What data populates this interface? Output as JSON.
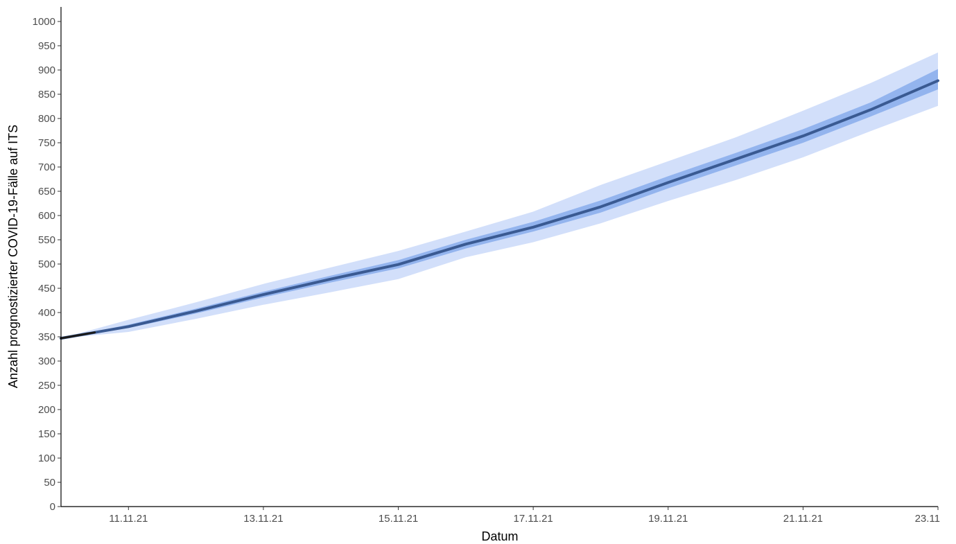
{
  "chart_data": {
    "type": "area",
    "title": "",
    "xlabel": "Datum",
    "ylabel": "Anzahl prognostizierter COVID-19-Fälle auf ITS",
    "x_ticks": [
      "11.11.21",
      "13.11.21",
      "15.11.21",
      "17.11.21",
      "19.11.21",
      "21.11.21",
      "23.11"
    ],
    "x_tick_dates": [
      "2021-11-11",
      "2021-11-13",
      "2021-11-15",
      "2021-11-17",
      "2021-11-19",
      "2021-11-21",
      "2021-11-23"
    ],
    "xlim": [
      "2021-11-10",
      "2021-11-23"
    ],
    "ylim": [
      0,
      1030
    ],
    "y_ticks": [
      0,
      50,
      100,
      150,
      200,
      250,
      300,
      350,
      400,
      450,
      500,
      550,
      600,
      650,
      700,
      750,
      800,
      850,
      900,
      950,
      1000
    ],
    "grid": false,
    "legend": "none",
    "x": [
      "2021-11-10",
      "2021-11-11",
      "2021-11-12",
      "2021-11-13",
      "2021-11-14",
      "2021-11-15",
      "2021-11-16",
      "2021-11-17",
      "2021-11-18",
      "2021-11-19",
      "2021-11-20",
      "2021-11-21",
      "2021-11-22",
      "2021-11-23"
    ],
    "series": [
      {
        "values": [
          347,
          371,
          403,
          437,
          469,
          499,
          541,
          576,
          618,
          668,
          716,
          764,
          818,
          878
        ]
      },
      {
        "lower": [
          347,
          368,
          398,
          431,
          462,
          491,
          532,
          567,
          606,
          656,
          703,
          750,
          804,
          860
        ],
        "upper": [
          347,
          375,
          408,
          443,
          476,
          508,
          550,
          587,
          631,
          681,
          729,
          778,
          833,
          902
        ]
      },
      {
        "lower": [
          347,
          360,
          387,
          416,
          442,
          469,
          514,
          545,
          584,
          630,
          673,
          720,
          774,
          826
        ],
        "upper": [
          347,
          385,
          421,
          459,
          493,
          527,
          567,
          608,
          663,
          712,
          761,
          816,
          873,
          936
        ]
      }
    ],
    "colors": {
      "line": "#3a5a92",
      "inner_band": "#93b4ee",
      "outer_band": "#d2dffa",
      "history_line": "#1a1a1a",
      "axis": "#000000"
    }
  }
}
